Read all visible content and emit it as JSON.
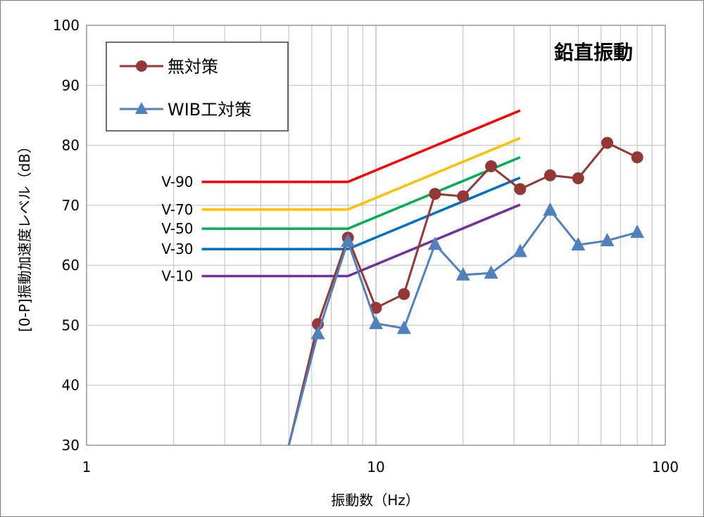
{
  "chart_data": {
    "type": "line",
    "title": "鉛直振動",
    "xlabel": "振動数（Hz）",
    "ylabel": "[0-P]振動加速度レベル（dB）",
    "x_scale": "log",
    "xlim": [
      1,
      100
    ],
    "ylim": [
      30,
      100
    ],
    "x_tick_labels": [
      "1",
      "10",
      "100"
    ],
    "y_tick_labels": [
      "30",
      "40",
      "50",
      "60",
      "70",
      "80",
      "90",
      "100"
    ],
    "grid": true,
    "legend_position": "top-left",
    "series": [
      {
        "name": "無対策",
        "color": "#953735",
        "marker": "circle",
        "x": [
          5,
          6.3,
          8,
          10,
          12.5,
          16,
          20,
          25,
          31.5,
          40,
          50,
          63,
          80
        ],
        "y": [
          30,
          50.2,
          64.6,
          52.9,
          55.2,
          71.9,
          71.5,
          76.5,
          72.7,
          75.0,
          74.5,
          80.4,
          78.0
        ]
      },
      {
        "name": "WIB工対策",
        "color": "#4F81BD",
        "marker": "triangle",
        "x": [
          5,
          6.3,
          8,
          10,
          12.5,
          16,
          20,
          25,
          31.5,
          40,
          50,
          63,
          80
        ],
        "y": [
          30,
          48.6,
          64.0,
          50.3,
          49.5,
          63.5,
          58.4,
          58.7,
          62.3,
          69.2,
          63.4,
          64.1,
          65.5
        ]
      }
    ],
    "reference_curves": [
      {
        "label": "V-90",
        "color": "#FF0000",
        "x": [
          2.5,
          8,
          31.5
        ],
        "y": [
          73.9,
          73.9,
          85.8
        ]
      },
      {
        "label": "V-70",
        "color": "#FFC000",
        "x": [
          2.5,
          8,
          31.5
        ],
        "y": [
          69.3,
          69.3,
          81.2
        ]
      },
      {
        "label": "V-50",
        "color": "#00B050",
        "x": [
          2.5,
          8,
          31.5
        ],
        "y": [
          66.1,
          66.1,
          78.0
        ]
      },
      {
        "label": "V-30",
        "color": "#0070C0",
        "x": [
          2.5,
          8,
          31.5
        ],
        "y": [
          62.7,
          62.7,
          74.6
        ]
      },
      {
        "label": "V-10",
        "color": "#7030A0",
        "x": [
          2.5,
          8,
          31.5
        ],
        "y": [
          58.2,
          58.2,
          70.1
        ]
      }
    ]
  }
}
